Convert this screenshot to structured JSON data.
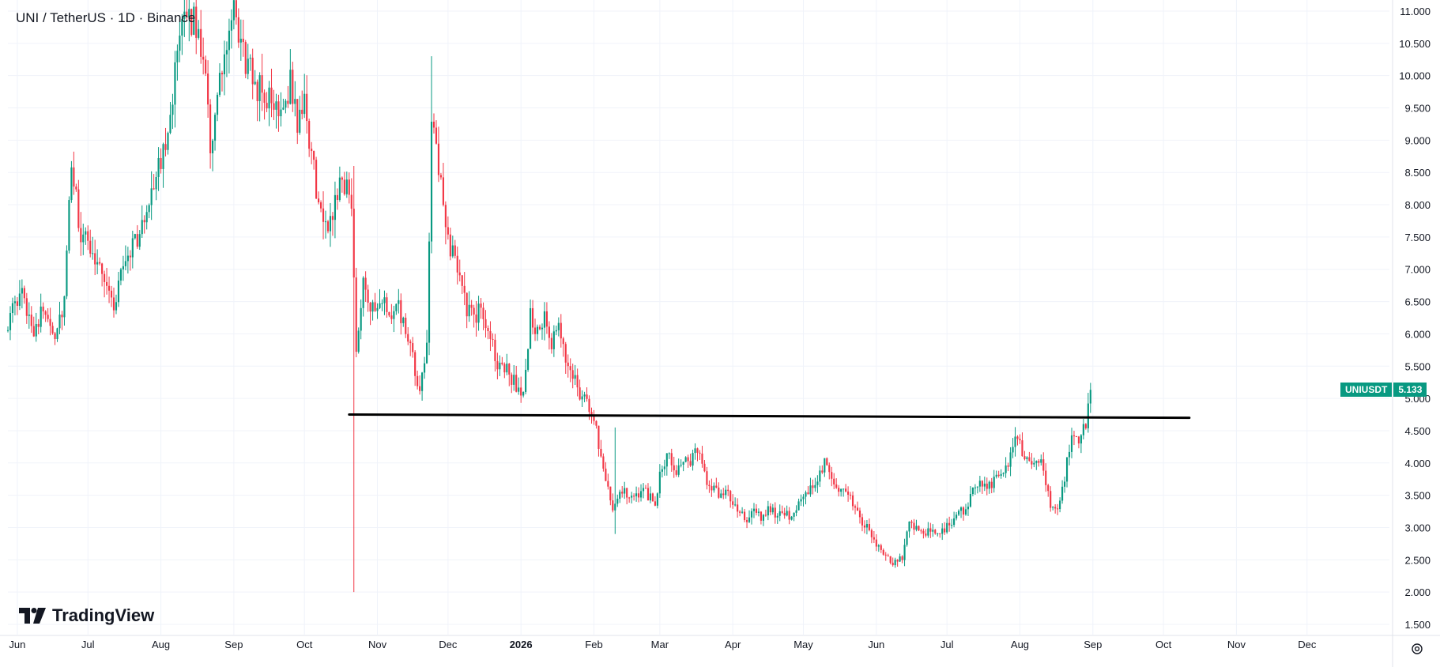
{
  "header": {
    "title": "UNI / TetherUS · 1D · Binance"
  },
  "brand": {
    "name": "TradingView",
    "logo_icon": "tradingview-logo-icon"
  },
  "price_badge": {
    "symbol": "UNIUSDT",
    "value": "5.133",
    "color": "#089981"
  },
  "colors": {
    "up": "#089981",
    "down": "#f23645",
    "grid": "#f0f3fa",
    "axis_text": "#131722",
    "support_line": "#000000"
  },
  "chart_data": {
    "type": "candlestick",
    "title": "UNI / TetherUS · 1D · Binance",
    "xlabel": "",
    "ylabel": "",
    "y_ticks": [
      "11.000",
      "10.500",
      "10.000",
      "9.500",
      "9.000",
      "8.500",
      "8.000",
      "7.500",
      "7.000",
      "6.500",
      "6.000",
      "5.500",
      "5.000",
      "4.500",
      "4.000",
      "3.500",
      "3.000",
      "2.500",
      "2.000",
      "1.500"
    ],
    "ylim": [
      1.5,
      11.0
    ],
    "x_ticks": [
      {
        "label": "Jun",
        "date": "2025-06-01"
      },
      {
        "label": "Jul",
        "date": "2025-07-01"
      },
      {
        "label": "Aug",
        "date": "2025-08-01"
      },
      {
        "label": "Sep",
        "date": "2025-09-01"
      },
      {
        "label": "Oct",
        "date": "2025-10-01"
      },
      {
        "label": "Nov",
        "date": "2025-11-01"
      },
      {
        "label": "Dec",
        "date": "2025-12-01"
      },
      {
        "label": "2026",
        "date": "2026-01-01",
        "bold": true
      },
      {
        "label": "Feb",
        "date": "2026-02-01"
      },
      {
        "label": "Mar",
        "date": "2026-03-01"
      },
      {
        "label": "Apr",
        "date": "2026-04-01"
      },
      {
        "label": "May",
        "date": "2026-05-01"
      },
      {
        "label": "Jun",
        "date": "2026-06-01"
      },
      {
        "label": "Jul",
        "date": "2026-07-01"
      },
      {
        "label": "Aug",
        "date": "2026-08-01"
      },
      {
        "label": "Sep",
        "date": "2026-09-01"
      },
      {
        "label": "Oct",
        "date": "2026-10-01"
      },
      {
        "label": "Nov",
        "date": "2026-11-01"
      },
      {
        "label": "Dec",
        "date": "2026-12-01"
      }
    ],
    "xlim": [
      "2025-05-28",
      "2027-01-05"
    ],
    "grid": true,
    "close_path": [
      [
        "2025-05-28",
        6.2
      ],
      [
        "2025-06-03",
        6.6
      ],
      [
        "2025-06-08",
        6.1
      ],
      [
        "2025-06-13",
        6.4
      ],
      [
        "2025-06-17",
        6.0
      ],
      [
        "2025-06-21",
        6.5
      ],
      [
        "2025-06-24",
        8.6
      ],
      [
        "2025-06-28",
        7.5
      ],
      [
        "2025-07-03",
        7.3
      ],
      [
        "2025-07-08",
        6.9
      ],
      [
        "2025-07-12",
        6.4
      ],
      [
        "2025-07-16",
        7.1
      ],
      [
        "2025-07-20",
        7.4
      ],
      [
        "2025-07-24",
        7.6
      ],
      [
        "2025-07-28",
        8.3
      ],
      [
        "2025-08-01",
        8.6
      ],
      [
        "2025-08-05",
        9.5
      ],
      [
        "2025-08-09",
        10.5
      ],
      [
        "2025-08-13",
        11.0
      ],
      [
        "2025-08-17",
        10.6
      ],
      [
        "2025-08-20",
        10.2
      ],
      [
        "2025-08-22",
        8.9
      ],
      [
        "2025-08-25",
        9.6
      ],
      [
        "2025-08-28",
        10.3
      ],
      [
        "2025-09-01",
        10.9
      ],
      [
        "2025-09-04",
        10.5
      ],
      [
        "2025-09-07",
        10.1
      ],
      [
        "2025-09-10",
        9.9
      ],
      [
        "2025-09-14",
        9.7
      ],
      [
        "2025-09-18",
        9.5
      ],
      [
        "2025-09-22",
        9.6
      ],
      [
        "2025-09-25",
        9.9
      ],
      [
        "2025-09-28",
        9.3
      ],
      [
        "2025-10-01",
        9.5
      ],
      [
        "2025-10-04",
        8.8
      ],
      [
        "2025-10-07",
        8.0
      ],
      [
        "2025-10-10",
        7.6
      ],
      [
        "2025-10-13",
        7.9
      ],
      [
        "2025-10-16",
        8.4
      ],
      [
        "2025-10-19",
        8.3
      ],
      [
        "2025-10-21",
        7.9
      ],
      [
        "2025-10-23",
        5.8
      ],
      [
        "2025-10-26",
        6.9
      ],
      [
        "2025-10-29",
        6.4
      ],
      [
        "2025-11-01",
        6.3
      ],
      [
        "2025-11-04",
        6.5
      ],
      [
        "2025-11-07",
        6.2
      ],
      [
        "2025-11-10",
        6.4
      ],
      [
        "2025-11-13",
        6.0
      ],
      [
        "2025-11-16",
        5.6
      ],
      [
        "2025-11-19",
        5.0
      ],
      [
        "2025-11-22",
        5.9
      ],
      [
        "2025-11-24",
        9.3
      ],
      [
        "2025-11-27",
        8.5
      ],
      [
        "2025-11-30",
        7.7
      ],
      [
        "2025-12-03",
        7.2
      ],
      [
        "2025-12-06",
        7.0
      ],
      [
        "2025-12-09",
        6.4
      ],
      [
        "2025-12-12",
        6.2
      ],
      [
        "2025-12-15",
        6.4
      ],
      [
        "2025-12-18",
        6.1
      ],
      [
        "2025-12-21",
        5.6
      ],
      [
        "2025-12-24",
        5.5
      ],
      [
        "2025-12-27",
        5.4
      ],
      [
        "2025-12-30",
        5.2
      ],
      [
        "2026-01-02",
        5.0
      ],
      [
        "2026-01-05",
        6.3
      ],
      [
        "2026-01-08",
        6.0
      ],
      [
        "2026-01-11",
        6.2
      ],
      [
        "2026-01-14",
        5.8
      ],
      [
        "2026-01-17",
        6.1
      ],
      [
        "2026-01-20",
        5.6
      ],
      [
        "2026-01-23",
        5.4
      ],
      [
        "2026-01-26",
        5.1
      ],
      [
        "2026-01-29",
        4.9
      ],
      [
        "2026-02-01",
        4.7
      ],
      [
        "2026-02-03",
        4.3
      ],
      [
        "2026-02-06",
        3.8
      ],
      [
        "2026-02-09",
        3.3
      ],
      [
        "2026-02-12",
        3.6
      ],
      [
        "2026-02-15",
        3.5
      ],
      [
        "2026-02-18",
        3.4
      ],
      [
        "2026-02-21",
        3.6
      ],
      [
        "2026-02-24",
        3.5
      ],
      [
        "2026-02-27",
        3.4
      ],
      [
        "2026-03-02",
        4.0
      ],
      [
        "2026-03-05",
        4.1
      ],
      [
        "2026-03-08",
        3.9
      ],
      [
        "2026-03-11",
        4.1
      ],
      [
        "2026-03-14",
        4.0
      ],
      [
        "2026-03-17",
        4.2
      ],
      [
        "2026-03-20",
        3.8
      ],
      [
        "2026-03-23",
        3.6
      ],
      [
        "2026-03-26",
        3.5
      ],
      [
        "2026-03-29",
        3.6
      ],
      [
        "2026-04-01",
        3.4
      ],
      [
        "2026-04-04",
        3.2
      ],
      [
        "2026-04-07",
        3.1
      ],
      [
        "2026-04-10",
        3.3
      ],
      [
        "2026-04-13",
        3.1
      ],
      [
        "2026-04-16",
        3.3
      ],
      [
        "2026-04-19",
        3.2
      ],
      [
        "2026-04-22",
        3.3
      ],
      [
        "2026-04-25",
        3.2
      ],
      [
        "2026-04-28",
        3.3
      ],
      [
        "2026-05-01",
        3.4
      ],
      [
        "2026-05-04",
        3.6
      ],
      [
        "2026-05-07",
        3.8
      ],
      [
        "2026-05-10",
        4.0
      ],
      [
        "2026-05-13",
        3.7
      ],
      [
        "2026-05-16",
        3.6
      ],
      [
        "2026-05-19",
        3.5
      ],
      [
        "2026-05-22",
        3.4
      ],
      [
        "2026-05-25",
        3.1
      ],
      [
        "2026-05-28",
        3.0
      ],
      [
        "2026-05-31",
        2.8
      ],
      [
        "2026-06-03",
        2.6
      ],
      [
        "2026-06-06",
        2.5
      ],
      [
        "2026-06-09",
        2.45
      ],
      [
        "2026-06-12",
        2.55
      ],
      [
        "2026-06-15",
        3.1
      ],
      [
        "2026-06-18",
        3.0
      ],
      [
        "2026-06-21",
        2.9
      ],
      [
        "2026-06-24",
        2.95
      ],
      [
        "2026-06-27",
        2.85
      ],
      [
        "2026-06-30",
        3.0
      ],
      [
        "2026-07-03",
        3.1
      ],
      [
        "2026-07-06",
        3.2
      ],
      [
        "2026-07-09",
        3.3
      ],
      [
        "2026-07-12",
        3.6
      ],
      [
        "2026-07-15",
        3.7
      ],
      [
        "2026-07-18",
        3.6
      ],
      [
        "2026-07-21",
        3.75
      ],
      [
        "2026-07-24",
        3.9
      ],
      [
        "2026-07-27",
        4.0
      ],
      [
        "2026-07-30",
        4.4
      ],
      [
        "2026-08-02",
        4.2
      ],
      [
        "2026-08-05",
        4.0
      ],
      [
        "2026-08-08",
        4.1
      ],
      [
        "2026-08-11",
        3.9
      ],
      [
        "2026-08-14",
        3.3
      ],
      [
        "2026-08-17",
        3.3
      ],
      [
        "2026-08-20",
        3.8
      ],
      [
        "2026-08-23",
        4.4
      ],
      [
        "2026-08-26",
        4.3
      ],
      [
        "2026-08-29",
        4.6
      ],
      [
        "2026-08-31",
        5.133
      ]
    ],
    "spikes": [
      {
        "date": "2025-10-22",
        "low": 2.0,
        "high": 8.6
      },
      {
        "date": "2025-11-24",
        "low": 7.8,
        "high": 10.3
      },
      {
        "date": "2026-02-10",
        "low": 2.9,
        "high": 4.55
      }
    ],
    "support_line": {
      "start": [
        "2025-10-20",
        4.75
      ],
      "end": [
        "2026-10-12",
        4.7
      ]
    },
    "last_price": 5.133
  }
}
